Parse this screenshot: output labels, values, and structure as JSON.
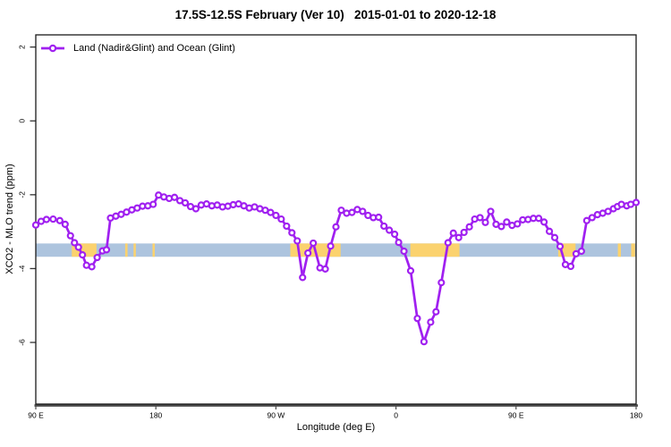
{
  "header": {
    "title": "17.5S-12.5S February (Ver 10)   2015-01-01 to 2020-12-18"
  },
  "chart_data": {
    "type": "line",
    "title": "17.5S-12.5S February (Ver 10)   2015-01-01 to 2020-12-18",
    "xlabel": "Longitude (deg E)",
    "ylabel": "XCO2 - MLO trend (ppm)",
    "x_note": "longitude unwrapped eastward: 90E -> 180 -> 90W -> 0 -> 90E -> 180 (90 to 540)",
    "xlim": [
      90,
      540
    ],
    "ylim": [
      -7.67,
      2.33
    ],
    "grid": false,
    "x_ticks": [
      {
        "value": 90,
        "label": "90 E"
      },
      {
        "value": 180,
        "label": "180"
      },
      {
        "value": 270,
        "label": "90 W"
      },
      {
        "value": 360,
        "label": "0"
      },
      {
        "value": 450,
        "label": "90 E"
      },
      {
        "value": 540,
        "label": "180"
      }
    ],
    "y_ticks": [
      {
        "value": 2,
        "label": "2"
      },
      {
        "value": 0,
        "label": "0"
      },
      {
        "value": -2,
        "label": "-2"
      },
      {
        "value": -4,
        "label": "-4"
      },
      {
        "value": -6,
        "label": "-6"
      }
    ],
    "legend": {
      "label": "Land (Nadir&Glint) and Ocean (Glint)",
      "position": "top-left"
    },
    "colors": {
      "series": "#A020F0",
      "marker_fill": "#FFFFFF",
      "blue_band": "#ADC4DE",
      "orange_band": "#FBD26E",
      "axis_line": "#4C4C4C",
      "box": "#1A1A1A"
    },
    "reference_bands": [
      {
        "name": "blue-reference-band",
        "color": "#ADC4DE",
        "x_from": 90,
        "x_to": 540,
        "y_from": -3.32,
        "y_to": -3.68
      },
      {
        "name": "orange-reference-band",
        "color": "#FBD26E",
        "x_from": 117,
        "x_to": 135.5,
        "y_from": -3.32,
        "y_to": -3.68
      },
      {
        "name": "orange-reference-band",
        "color": "#FBD26E",
        "x_from": 157,
        "x_to": 158.8,
        "y_from": -3.32,
        "y_to": -3.68
      },
      {
        "name": "orange-reference-band",
        "color": "#FBD26E",
        "x_from": 163.3,
        "x_to": 165,
        "y_from": -3.32,
        "y_to": -3.68
      },
      {
        "name": "orange-reference-band",
        "color": "#FBD26E",
        "x_from": 177.5,
        "x_to": 179.2,
        "y_from": -3.32,
        "y_to": -3.68
      },
      {
        "name": "orange-reference-band",
        "color": "#FBD26E",
        "x_from": 280.8,
        "x_to": 318.5,
        "y_from": -3.32,
        "y_to": -3.68
      },
      {
        "name": "orange-reference-band",
        "color": "#FBD26E",
        "x_from": 370.8,
        "x_to": 407.6,
        "y_from": -3.32,
        "y_to": -3.68
      },
      {
        "name": "orange-reference-band",
        "color": "#FBD26E",
        "x_from": 481.6,
        "x_to": 494.6,
        "y_from": -3.32,
        "y_to": -3.68
      },
      {
        "name": "orange-reference-band",
        "color": "#FBD26E",
        "x_from": 526.3,
        "x_to": 528.6,
        "y_from": -3.32,
        "y_to": -3.68
      },
      {
        "name": "orange-reference-band",
        "color": "#FBD26E",
        "x_from": 536.3,
        "x_to": 539.2,
        "y_from": -3.32,
        "y_to": -3.68
      }
    ],
    "series": [
      {
        "name": "Land (Nadir&Glint) and Ocean (Glint)",
        "style": "line+open-circle-markers",
        "color": "#A020F0",
        "points": [
          [
            90,
            -2.82
          ],
          [
            94,
            -2.72
          ],
          [
            98,
            -2.67
          ],
          [
            103,
            -2.66
          ],
          [
            108,
            -2.7
          ],
          [
            112,
            -2.8
          ],
          [
            116,
            -3.11
          ],
          [
            119,
            -3.3
          ],
          [
            122,
            -3.42
          ],
          [
            125,
            -3.63
          ],
          [
            128,
            -3.91
          ],
          [
            132,
            -3.95
          ],
          [
            136,
            -3.7
          ],
          [
            140,
            -3.52
          ],
          [
            143,
            -3.49
          ],
          [
            146,
            -2.63
          ],
          [
            150,
            -2.58
          ],
          [
            154,
            -2.53
          ],
          [
            158,
            -2.47
          ],
          [
            162,
            -2.41
          ],
          [
            166,
            -2.36
          ],
          [
            170,
            -2.31
          ],
          [
            174,
            -2.3
          ],
          [
            178,
            -2.26
          ],
          [
            182,
            -2.01
          ],
          [
            186,
            -2.06
          ],
          [
            190,
            -2.1
          ],
          [
            194,
            -2.07
          ],
          [
            198,
            -2.16
          ],
          [
            202,
            -2.22
          ],
          [
            206,
            -2.32
          ],
          [
            210,
            -2.38
          ],
          [
            214,
            -2.28
          ],
          [
            218,
            -2.25
          ],
          [
            222,
            -2.3
          ],
          [
            226,
            -2.28
          ],
          [
            230,
            -2.33
          ],
          [
            234,
            -2.31
          ],
          [
            238,
            -2.27
          ],
          [
            242,
            -2.25
          ],
          [
            246,
            -2.3
          ],
          [
            250,
            -2.36
          ],
          [
            254,
            -2.33
          ],
          [
            258,
            -2.38
          ],
          [
            262,
            -2.42
          ],
          [
            266,
            -2.48
          ],
          [
            270,
            -2.56
          ],
          [
            274,
            -2.66
          ],
          [
            278,
            -2.85
          ],
          [
            282,
            -3.03
          ],
          [
            286,
            -3.25
          ],
          [
            290,
            -4.24
          ],
          [
            294,
            -3.58
          ],
          [
            298,
            -3.31
          ],
          [
            303,
            -3.98
          ],
          [
            307,
            -4.01
          ],
          [
            311,
            -3.39
          ],
          [
            315,
            -2.87
          ],
          [
            319,
            -2.42
          ],
          [
            323,
            -2.5
          ],
          [
            327,
            -2.48
          ],
          [
            331,
            -2.4
          ],
          [
            335,
            -2.45
          ],
          [
            339,
            -2.56
          ],
          [
            343,
            -2.62
          ],
          [
            347,
            -2.61
          ],
          [
            351,
            -2.85
          ],
          [
            355,
            -2.96
          ],
          [
            359,
            -3.07
          ],
          [
            362,
            -3.29
          ],
          [
            366,
            -3.53
          ],
          [
            371,
            -4.06
          ],
          [
            376,
            -5.35
          ],
          [
            381,
            -5.98
          ],
          [
            386,
            -5.45
          ],
          [
            390,
            -5.17
          ],
          [
            394,
            -4.38
          ],
          [
            399,
            -3.3
          ],
          [
            403,
            -3.04
          ],
          [
            407,
            -3.16
          ],
          [
            411,
            -3.02
          ],
          [
            415,
            -2.87
          ],
          [
            419,
            -2.66
          ],
          [
            423,
            -2.62
          ],
          [
            427,
            -2.75
          ],
          [
            431,
            -2.45
          ],
          [
            435,
            -2.8
          ],
          [
            439,
            -2.86
          ],
          [
            443,
            -2.74
          ],
          [
            447,
            -2.83
          ],
          [
            451,
            -2.79
          ],
          [
            455,
            -2.68
          ],
          [
            459,
            -2.67
          ],
          [
            463,
            -2.64
          ],
          [
            467,
            -2.64
          ],
          [
            471,
            -2.74
          ],
          [
            475,
            -2.99
          ],
          [
            479,
            -3.16
          ],
          [
            483,
            -3.4
          ],
          [
            487,
            -3.89
          ],
          [
            491,
            -3.94
          ],
          [
            495,
            -3.6
          ],
          [
            499,
            -3.53
          ],
          [
            503,
            -2.7
          ],
          [
            507,
            -2.62
          ],
          [
            511,
            -2.54
          ],
          [
            515,
            -2.5
          ],
          [
            519,
            -2.45
          ],
          [
            523,
            -2.38
          ],
          [
            526,
            -2.32
          ],
          [
            529,
            -2.26
          ],
          [
            533,
            -2.3
          ],
          [
            536,
            -2.26
          ],
          [
            540,
            -2.21
          ]
        ]
      }
    ]
  }
}
